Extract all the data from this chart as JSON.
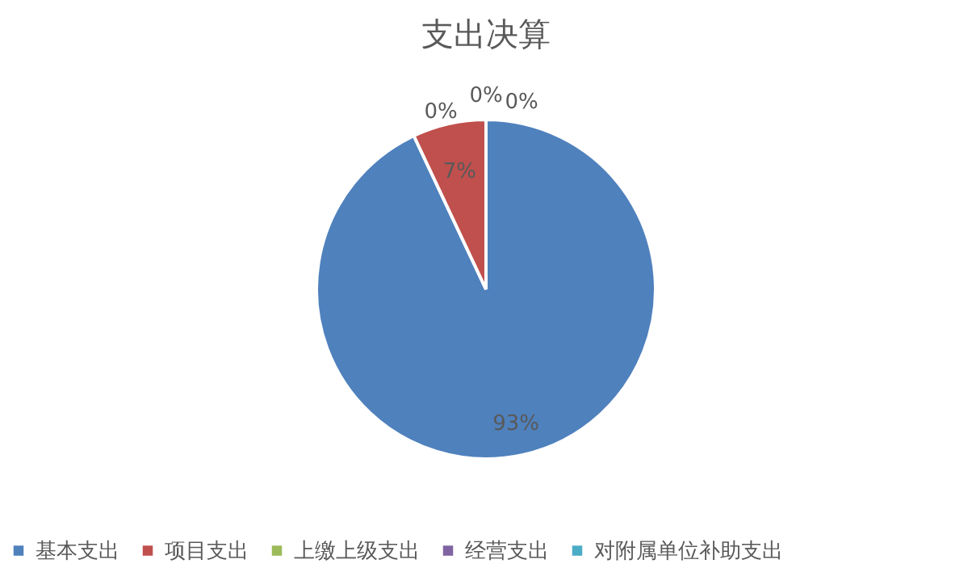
{
  "chart_data": {
    "type": "pie",
    "title": "支出决算",
    "categories": [
      "基本支出",
      "项目支出",
      "上缴上级支出",
      "经营支出",
      "对附属单位补助支出"
    ],
    "values": [
      93,
      7,
      0,
      0,
      0
    ],
    "value_labels": [
      "93%",
      "7%",
      "0%",
      "0%",
      "0%"
    ],
    "colors": [
      "#4f81bd",
      "#c0504d",
      "#9bbb59",
      "#8064a2",
      "#4bacc6"
    ],
    "legend": "bottom"
  }
}
